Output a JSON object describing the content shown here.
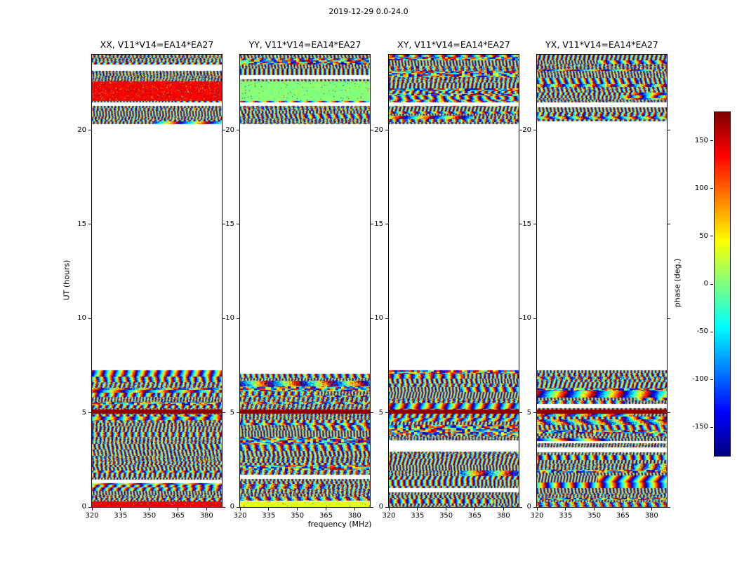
{
  "figure_title": "2019-12-29 0.0-24.0",
  "colors": {
    "background": "#ffffff",
    "text": "#000000",
    "frame": "#000000"
  },
  "chart_data": {
    "type": "heatmap",
    "title": "2019-12-29 0.0-24.0",
    "xlabel": "frequency (MHz)",
    "ylabel": "UT (hours)",
    "xlim": [
      320,
      388
    ],
    "ylim": [
      0,
      24
    ],
    "xticks": [
      320,
      335,
      350,
      365,
      380
    ],
    "yticks": [
      0,
      5,
      10,
      15,
      20
    ],
    "panels": [
      {
        "title": "XX, V11*V14=EA14*EA27",
        "pol": "XX",
        "seed": 11
      },
      {
        "title": "YY, V11*V14=EA14*EA27",
        "pol": "YY",
        "seed": 22
      },
      {
        "title": "XY, V11*V14=EA14*EA27",
        "pol": "XY",
        "seed": 33
      },
      {
        "title": "YX, V11*V14=EA14*EA27",
        "pol": "YX",
        "seed": 44
      }
    ],
    "colorbar": {
      "label": "phase (deg.)",
      "ticks": [
        150,
        100,
        50,
        0,
        -50,
        -100,
        -150
      ],
      "vmin": -180,
      "vmax": 180,
      "colormap": "jet"
    },
    "data_bands_hours": [
      [
        0,
        7.25
      ],
      [
        20.3,
        24.0
      ]
    ],
    "blank_hours": [
      7.25,
      20.3
    ],
    "features": {
      "dark_red_stripe_hours": [
        4.95,
        5.18
      ],
      "white_gap_hours": [
        21.3,
        21.47
      ],
      "XX_solid_red_hours": [
        21.55,
        22.6
      ],
      "YY_solid_green_hours": [
        21.55,
        22.6
      ],
      "XX_bottom_red_hours": [
        0.0,
        0.28
      ],
      "YY_bottom_green_hours": [
        0.0,
        0.28
      ]
    },
    "description": "Phase waterfall (time vs frequency) for four polarization products of baseline V11*V14=EA14*EA27; noisy phase fringes fill hours 0-7.25 and 20.3-24, blank (white) between; phase wrapped -180..180 deg with jet colormap."
  }
}
